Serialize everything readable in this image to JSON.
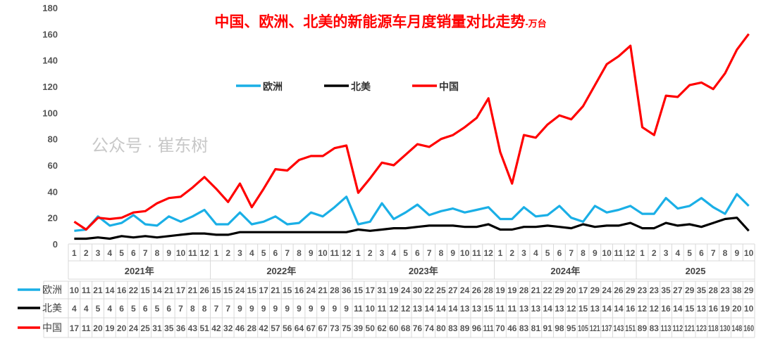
{
  "chart_data": {
    "type": "line",
    "title": "中国、欧洲、北美的新能源车月度销量对比走势",
    "title_unit": "-万台",
    "ylim": [
      0,
      180
    ],
    "yticks": [
      0,
      20,
      40,
      60,
      80,
      100,
      120,
      140,
      160,
      180
    ],
    "grid": false,
    "legend_placement": "center",
    "years": [
      "2021年",
      "2022年",
      "2023年",
      "2024年",
      "2025"
    ],
    "months_per_year": [
      12,
      12,
      12,
      12,
      10
    ],
    "series": [
      {
        "name": "欧洲",
        "color": "#1AAFE6",
        "values": [
          10,
          11,
          21,
          14,
          16,
          22,
          15,
          14,
          21,
          17,
          21,
          26,
          15,
          15,
          24,
          15,
          17,
          21,
          15,
          16,
          24,
          21,
          28,
          36,
          15,
          17,
          31,
          19,
          24,
          30,
          22,
          25,
          27,
          24,
          26,
          28,
          19,
          19,
          28,
          21,
          22,
          29,
          20,
          17,
          29,
          24,
          26,
          29,
          23,
          23,
          35,
          27,
          29,
          35,
          28,
          23,
          38,
          29
        ]
      },
      {
        "name": "北美",
        "color": "#000000",
        "values": [
          4,
          4,
          5,
          4,
          6,
          5,
          6,
          5,
          6,
          7,
          8,
          8,
          7,
          7,
          9,
          9,
          9,
          9,
          9,
          9,
          9,
          9,
          9,
          9,
          11,
          10,
          11,
          12,
          12,
          13,
          14,
          14,
          14,
          13,
          13,
          15,
          11,
          11,
          13,
          13,
          14,
          13,
          12,
          15,
          13,
          14,
          14,
          16,
          12,
          12,
          16,
          14,
          15,
          13,
          16,
          19,
          20,
          10
        ]
      },
      {
        "name": "中国",
        "color": "#FF0000",
        "values": [
          17,
          11,
          20,
          19,
          20,
          24,
          25,
          31,
          35,
          36,
          43,
          51,
          42,
          32,
          46,
          28,
          42,
          57,
          56,
          64,
          67,
          67,
          73,
          75,
          39,
          50,
          62,
          60,
          68,
          76,
          74,
          80,
          83,
          89,
          96,
          111,
          70,
          46,
          83,
          81,
          91,
          98,
          95,
          105,
          121,
          137,
          143,
          151,
          89,
          83,
          113,
          112,
          121,
          123,
          118,
          130,
          148,
          160
        ]
      }
    ]
  },
  "watermark": "公众号 · 崔东树"
}
